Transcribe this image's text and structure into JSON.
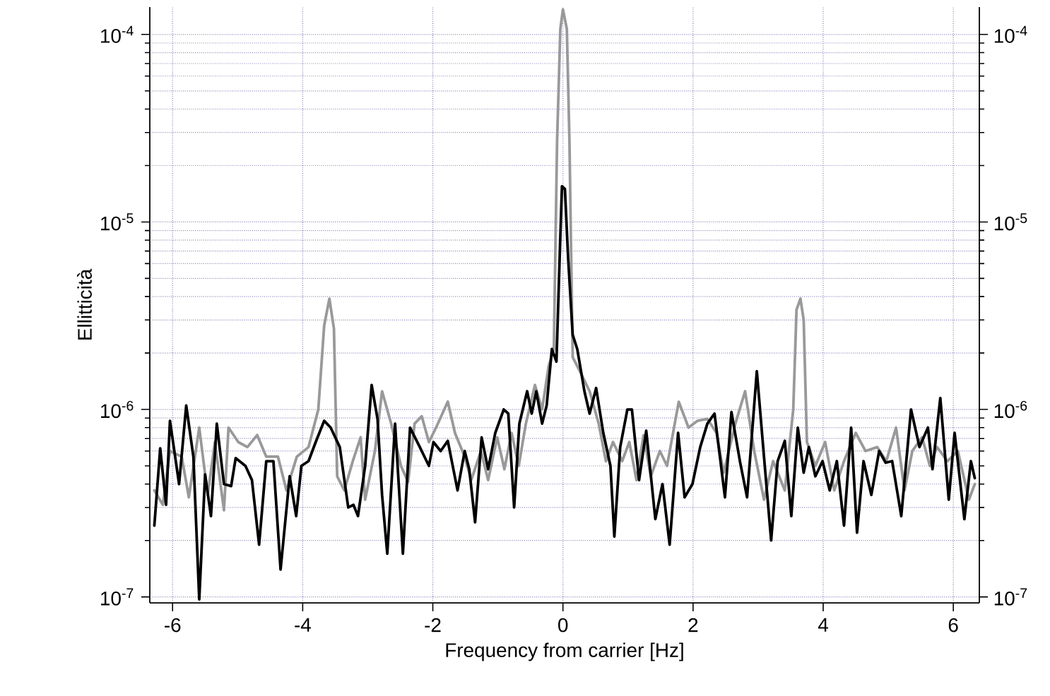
{
  "chart_data": {
    "type": "line",
    "xlabel": "Frequency from carrier [Hz]",
    "ylabel": "Ellitticità",
    "log": "y",
    "grid": true,
    "line_style": "solid",
    "xlim": [
      -6.35,
      6.4
    ],
    "ylim": [
      9.3e-08,
      0.00014
    ],
    "xticks": [
      -6,
      -4,
      -2,
      0,
      2,
      4,
      6
    ],
    "yticks": [
      {
        "value": 1e-07,
        "label": "10$^{-7}$"
      },
      {
        "value": 1e-06,
        "label": "10$^{-6}$"
      },
      {
        "value": 1e-05,
        "label": "10$^{-5}$"
      },
      {
        "value": 0.0001,
        "label": "10$^{-4}$"
      }
    ],
    "series": [
      {
        "color": "#999999",
        "x": [
          -6.28,
          -6.15,
          -6.04,
          -5.86,
          -5.75,
          -5.59,
          -5.46,
          -5.35,
          -5.21,
          -5.14,
          -4.99,
          -4.85,
          -4.7,
          -4.56,
          -4.38,
          -4.25,
          -4.09,
          -3.91,
          -3.76,
          -3.67,
          -3.59,
          -3.52,
          -3.47,
          -3.36,
          -3.23,
          -3.11,
          -3.04,
          -2.89,
          -2.78,
          -2.64,
          -2.49,
          -2.38,
          -2.28,
          -2.17,
          -2.06,
          -1.95,
          -1.77,
          -1.66,
          -1.51,
          -1.41,
          -1.26,
          -1.15,
          -1.01,
          -0.9,
          -0.79,
          -0.68,
          -0.57,
          -0.43,
          -0.32,
          -0.22,
          -0.14,
          -0.09,
          -0.04,
          0.0,
          0.06,
          0.1,
          0.15,
          0.26,
          0.41,
          0.55,
          0.66,
          0.77,
          0.91,
          1.02,
          1.13,
          1.24,
          1.35,
          1.49,
          1.6,
          1.78,
          1.93,
          2.07,
          2.22,
          2.36,
          2.47,
          2.65,
          2.8,
          2.94,
          3.09,
          3.23,
          3.41,
          3.54,
          3.59,
          3.65,
          3.7,
          3.75,
          3.88,
          4.03,
          4.17,
          4.32,
          4.5,
          4.65,
          4.83,
          4.97,
          5.12,
          5.25,
          5.37,
          5.52,
          5.64,
          5.75,
          5.91,
          6.07,
          6.24,
          6.33
        ],
        "values": [
          3.7e-07,
          3.1e-07,
          6e-07,
          5.6e-07,
          3.4e-07,
          8e-07,
          3.5e-07,
          6.7e-07,
          2.9e-07,
          8e-07,
          6.7e-07,
          6.3e-07,
          7.3e-07,
          5.6e-07,
          5.6e-07,
          3.7e-07,
          5.6e-07,
          6.3e-07,
          1e-06,
          2.8e-06,
          3.9e-06,
          2.7e-06,
          4.4e-07,
          3.7e-07,
          5.3e-07,
          7.1e-07,
          3.3e-07,
          6e-07,
          1.25e-06,
          8.4e-07,
          5e-07,
          4.1e-07,
          8.4e-07,
          9.2e-07,
          6.7e-07,
          8e-07,
          1.1e-06,
          7.5e-07,
          5.6e-07,
          4.2e-07,
          6e-07,
          4.2e-07,
          7.1e-07,
          4.8e-07,
          7.5e-07,
          5e-07,
          8.4e-07,
          1.35e-06,
          1e-06,
          1.7e-06,
          2.1e-06,
          2.7e-05,
          0.000107,
          0.000136,
          0.000107,
          2.7e-05,
          1.9e-06,
          1.6e-06,
          1.25e-06,
          8.4e-07,
          5.3e-07,
          6.7e-07,
          5.3e-07,
          6.7e-07,
          4.2e-07,
          7.3e-07,
          4.4e-07,
          6e-07,
          5e-07,
          1.1e-06,
          8e-07,
          8.7e-07,
          8.9e-07,
          7.5e-07,
          4.6e-07,
          8.4e-07,
          1.25e-06,
          6e-07,
          3.3e-07,
          5.3e-07,
          3.7e-07,
          1e-06,
          3.4e-06,
          3.9e-06,
          3e-06,
          6.7e-07,
          5e-07,
          6.7e-07,
          3.7e-07,
          5.3e-07,
          7.5e-07,
          6e-07,
          6.3e-07,
          5.3e-07,
          8e-07,
          3.7e-07,
          6e-07,
          7.1e-07,
          5e-07,
          6.3e-07,
          5.3e-07,
          6e-07,
          3.3e-07,
          4e-07
        ]
      },
      {
        "color": "#000000",
        "x": [
          -6.28,
          -6.19,
          -6.1,
          -6.04,
          -5.9,
          -5.79,
          -5.68,
          -5.59,
          -5.5,
          -5.41,
          -5.32,
          -5.21,
          -5.1,
          -5.03,
          -4.88,
          -4.78,
          -4.67,
          -4.56,
          -4.45,
          -4.34,
          -4.2,
          -4.1,
          -4.02,
          -3.91,
          -3.8,
          -3.67,
          -3.57,
          -3.43,
          -3.3,
          -3.22,
          -3.15,
          -3.04,
          -2.94,
          -2.85,
          -2.78,
          -2.7,
          -2.58,
          -2.46,
          -2.35,
          -2.2,
          -2.06,
          -1.99,
          -1.88,
          -1.77,
          -1.62,
          -1.51,
          -1.44,
          -1.35,
          -1.25,
          -1.15,
          -1.04,
          -0.91,
          -0.84,
          -0.75,
          -0.67,
          -0.55,
          -0.48,
          -0.41,
          -0.32,
          -0.25,
          -0.17,
          -0.1,
          -0.04,
          -0.015,
          0.03,
          0.08,
          0.15,
          0.22,
          0.33,
          0.41,
          0.51,
          0.62,
          0.73,
          0.79,
          0.88,
          0.99,
          1.06,
          1.17,
          1.28,
          1.42,
          1.53,
          1.64,
          1.77,
          1.87,
          1.99,
          2.11,
          2.22,
          2.33,
          2.49,
          2.59,
          2.72,
          2.83,
          2.98,
          3.09,
          3.2,
          3.3,
          3.41,
          3.51,
          3.61,
          3.7,
          3.78,
          3.88,
          3.99,
          4.1,
          4.21,
          4.32,
          4.43,
          4.52,
          4.62,
          4.74,
          4.86,
          4.96,
          5.06,
          5.2,
          5.35,
          5.48,
          5.61,
          5.68,
          5.8,
          5.93,
          6.02,
          6.17,
          6.27,
          6.33
        ],
        "values": [
          2.4e-07,
          6.2e-07,
          3.1e-07,
          8.7e-07,
          4e-07,
          1.05e-06,
          5.6e-07,
          9.7e-08,
          4.5e-07,
          2.7e-07,
          8.4e-07,
          4e-07,
          3.9e-07,
          5.5e-07,
          5e-07,
          4.2e-07,
          1.9e-07,
          5.3e-07,
          5.3e-07,
          1.4e-07,
          4.4e-07,
          2.7e-07,
          5e-07,
          5.3e-07,
          6.7e-07,
          8.7e-07,
          8e-07,
          6.3e-07,
          3e-07,
          3.1e-07,
          2.7e-07,
          5e-07,
          1.35e-06,
          8.9e-07,
          3.5e-07,
          1.7e-07,
          8.4e-07,
          1.7e-07,
          8e-07,
          6.3e-07,
          5e-07,
          6.7e-07,
          6e-07,
          6.8e-07,
          3.7e-07,
          6e-07,
          4.8e-07,
          2.5e-07,
          7.1e-07,
          4.8e-07,
          7.5e-07,
          1e-06,
          9.5e-07,
          3e-07,
          8.4e-07,
          1.25e-06,
          9.5e-07,
          1.25e-06,
          8.4e-07,
          1.05e-06,
          2.1e-06,
          1.8e-06,
          8.4e-06,
          1.55e-05,
          1.5e-05,
          6.4e-06,
          2.5e-06,
          2.1e-06,
          1.25e-06,
          9.5e-07,
          1.3e-06,
          7.5e-07,
          5e-07,
          2.1e-07,
          6.3e-07,
          1e-06,
          1e-06,
          4.2e-07,
          7.7e-07,
          2.6e-07,
          4e-07,
          1.9e-07,
          7.5e-07,
          3.4e-07,
          4e-07,
          6.3e-07,
          8.4e-07,
          9.5e-07,
          3.4e-07,
          9.7e-07,
          5.3e-07,
          3.4e-07,
          1.6e-06,
          5.6e-07,
          2e-07,
          5.3e-07,
          6.8e-07,
          2.7e-07,
          8e-07,
          4.6e-07,
          6.3e-07,
          4.4e-07,
          5.3e-07,
          3.7e-07,
          5.3e-07,
          2.4e-07,
          8e-07,
          2.2e-07,
          5.3e-07,
          3.5e-07,
          6e-07,
          5.2e-07,
          5.3e-07,
          2.7e-07,
          1e-06,
          6.3e-07,
          8e-07,
          4.8e-07,
          1.15e-06,
          3.3e-07,
          7.5e-07,
          2.6e-07,
          5.3e-07,
          4.3e-07
        ]
      }
    ]
  }
}
